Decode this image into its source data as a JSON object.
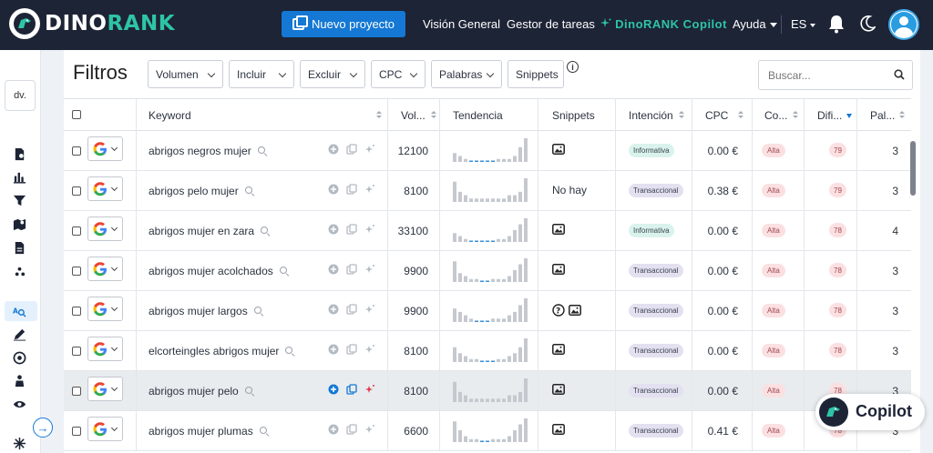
{
  "header": {
    "brand_part1": "DINO",
    "brand_part2": "RANK",
    "new_project_label": "Nuevo proyecto",
    "nav_overview": "Visión General",
    "nav_tasks": "Gestor de tareas",
    "nav_copilot": "DinoRANK Copilot",
    "nav_help": "Ayuda",
    "lang": "ES"
  },
  "sidebar": {
    "project_short": "dv."
  },
  "filters": {
    "title": "Filtros",
    "buttons": [
      "Volumen",
      "Incluir",
      "Excluir",
      "CPC",
      "Palabras",
      "Snippets"
    ],
    "search_placeholder": "Buscar..."
  },
  "table": {
    "columns": [
      "Keyword",
      "Vol...",
      "Tendencia",
      "Snippets",
      "Intención",
      "CPC",
      "Co...",
      "Difi...",
      "Pal..."
    ],
    "rows": [
      {
        "keyword": "abrigos negros mujer",
        "volume": "12100",
        "trend": [
          3,
          2,
          1,
          0,
          0,
          0,
          0,
          0,
          1,
          1,
          1,
          2,
          5,
          8
        ],
        "snippets": [
          "image"
        ],
        "snippet_text": "",
        "intent": "Informativa",
        "intent_type": "info",
        "cpc": "0.00 €",
        "competition": "Alta",
        "difficulty": "79",
        "words": "3"
      },
      {
        "keyword": "abrigos pelo mujer",
        "volume": "8100",
        "trend": [
          6,
          3,
          2,
          1,
          1,
          1,
          1,
          1,
          1,
          1,
          2,
          2,
          3,
          7
        ],
        "snippets": [],
        "snippet_text": "No hay",
        "intent": "Transaccional",
        "intent_type": "trans",
        "cpc": "0.38 €",
        "competition": "Alta",
        "difficulty": "79",
        "words": "3"
      },
      {
        "keyword": "abrigos mujer en zara",
        "volume": "33100",
        "trend": [
          3,
          2,
          1,
          0,
          0,
          0,
          0,
          0,
          1,
          1,
          2,
          4,
          6,
          8
        ],
        "snippets": [
          "image"
        ],
        "snippet_text": "",
        "intent": "Informativa",
        "intent_type": "info",
        "cpc": "0.00 €",
        "competition": "Alta",
        "difficulty": "78",
        "words": "4"
      },
      {
        "keyword": "abrigos mujer acolchados",
        "volume": "9900",
        "trend": [
          7,
          3,
          2,
          1,
          1,
          0,
          0,
          1,
          1,
          1,
          2,
          4,
          6,
          8
        ],
        "snippets": [
          "image"
        ],
        "snippet_text": "",
        "intent": "Transaccional",
        "intent_type": "trans",
        "cpc": "0.00 €",
        "competition": "Alta",
        "difficulty": "78",
        "words": "3"
      },
      {
        "keyword": "abrigos mujer largos",
        "volume": "9900",
        "trend": [
          4,
          3,
          2,
          1,
          0,
          0,
          0,
          1,
          1,
          1,
          2,
          3,
          5,
          7
        ],
        "snippets": [
          "question",
          "image"
        ],
        "snippet_text": "",
        "intent": "Transaccional",
        "intent_type": "trans",
        "cpc": "0.00 €",
        "competition": "Alta",
        "difficulty": "78",
        "words": "3"
      },
      {
        "keyword": "elcorteingles abrigos mujer",
        "volume": "8100",
        "trend": [
          5,
          3,
          2,
          1,
          1,
          0,
          0,
          0,
          1,
          1,
          2,
          3,
          5,
          8
        ],
        "snippets": [
          "image"
        ],
        "snippet_text": "",
        "intent": "Transaccional",
        "intent_type": "trans",
        "cpc": "0.00 €",
        "competition": "Alta",
        "difficulty": "78",
        "words": "3"
      },
      {
        "keyword": "abrigos mujer pelo",
        "volume": "8100",
        "trend": [
          6,
          3,
          2,
          1,
          1,
          1,
          1,
          1,
          1,
          1,
          2,
          2,
          3,
          7
        ],
        "snippets": [
          "image"
        ],
        "snippet_text": "",
        "intent": "Transaccional",
        "intent_type": "trans",
        "cpc": "0.00 €",
        "competition": "Alta",
        "difficulty": "78",
        "words": "3"
      },
      {
        "keyword": "abrigos mujer plumas",
        "volume": "6600",
        "trend": [
          7,
          4,
          2,
          1,
          1,
          0,
          0,
          1,
          1,
          1,
          2,
          4,
          6,
          8
        ],
        "snippets": [
          "image"
        ],
        "snippet_text": "",
        "intent": "Transaccional",
        "intent_type": "trans",
        "cpc": "0.41 €",
        "competition": "Alta",
        "difficulty": "78",
        "words": "3"
      }
    ]
  },
  "copilot_fab_label": "Copilot",
  "colors": {
    "accent": "#1478d4",
    "brand_green": "#2ec4a6",
    "topbar": "#1d2436"
  }
}
